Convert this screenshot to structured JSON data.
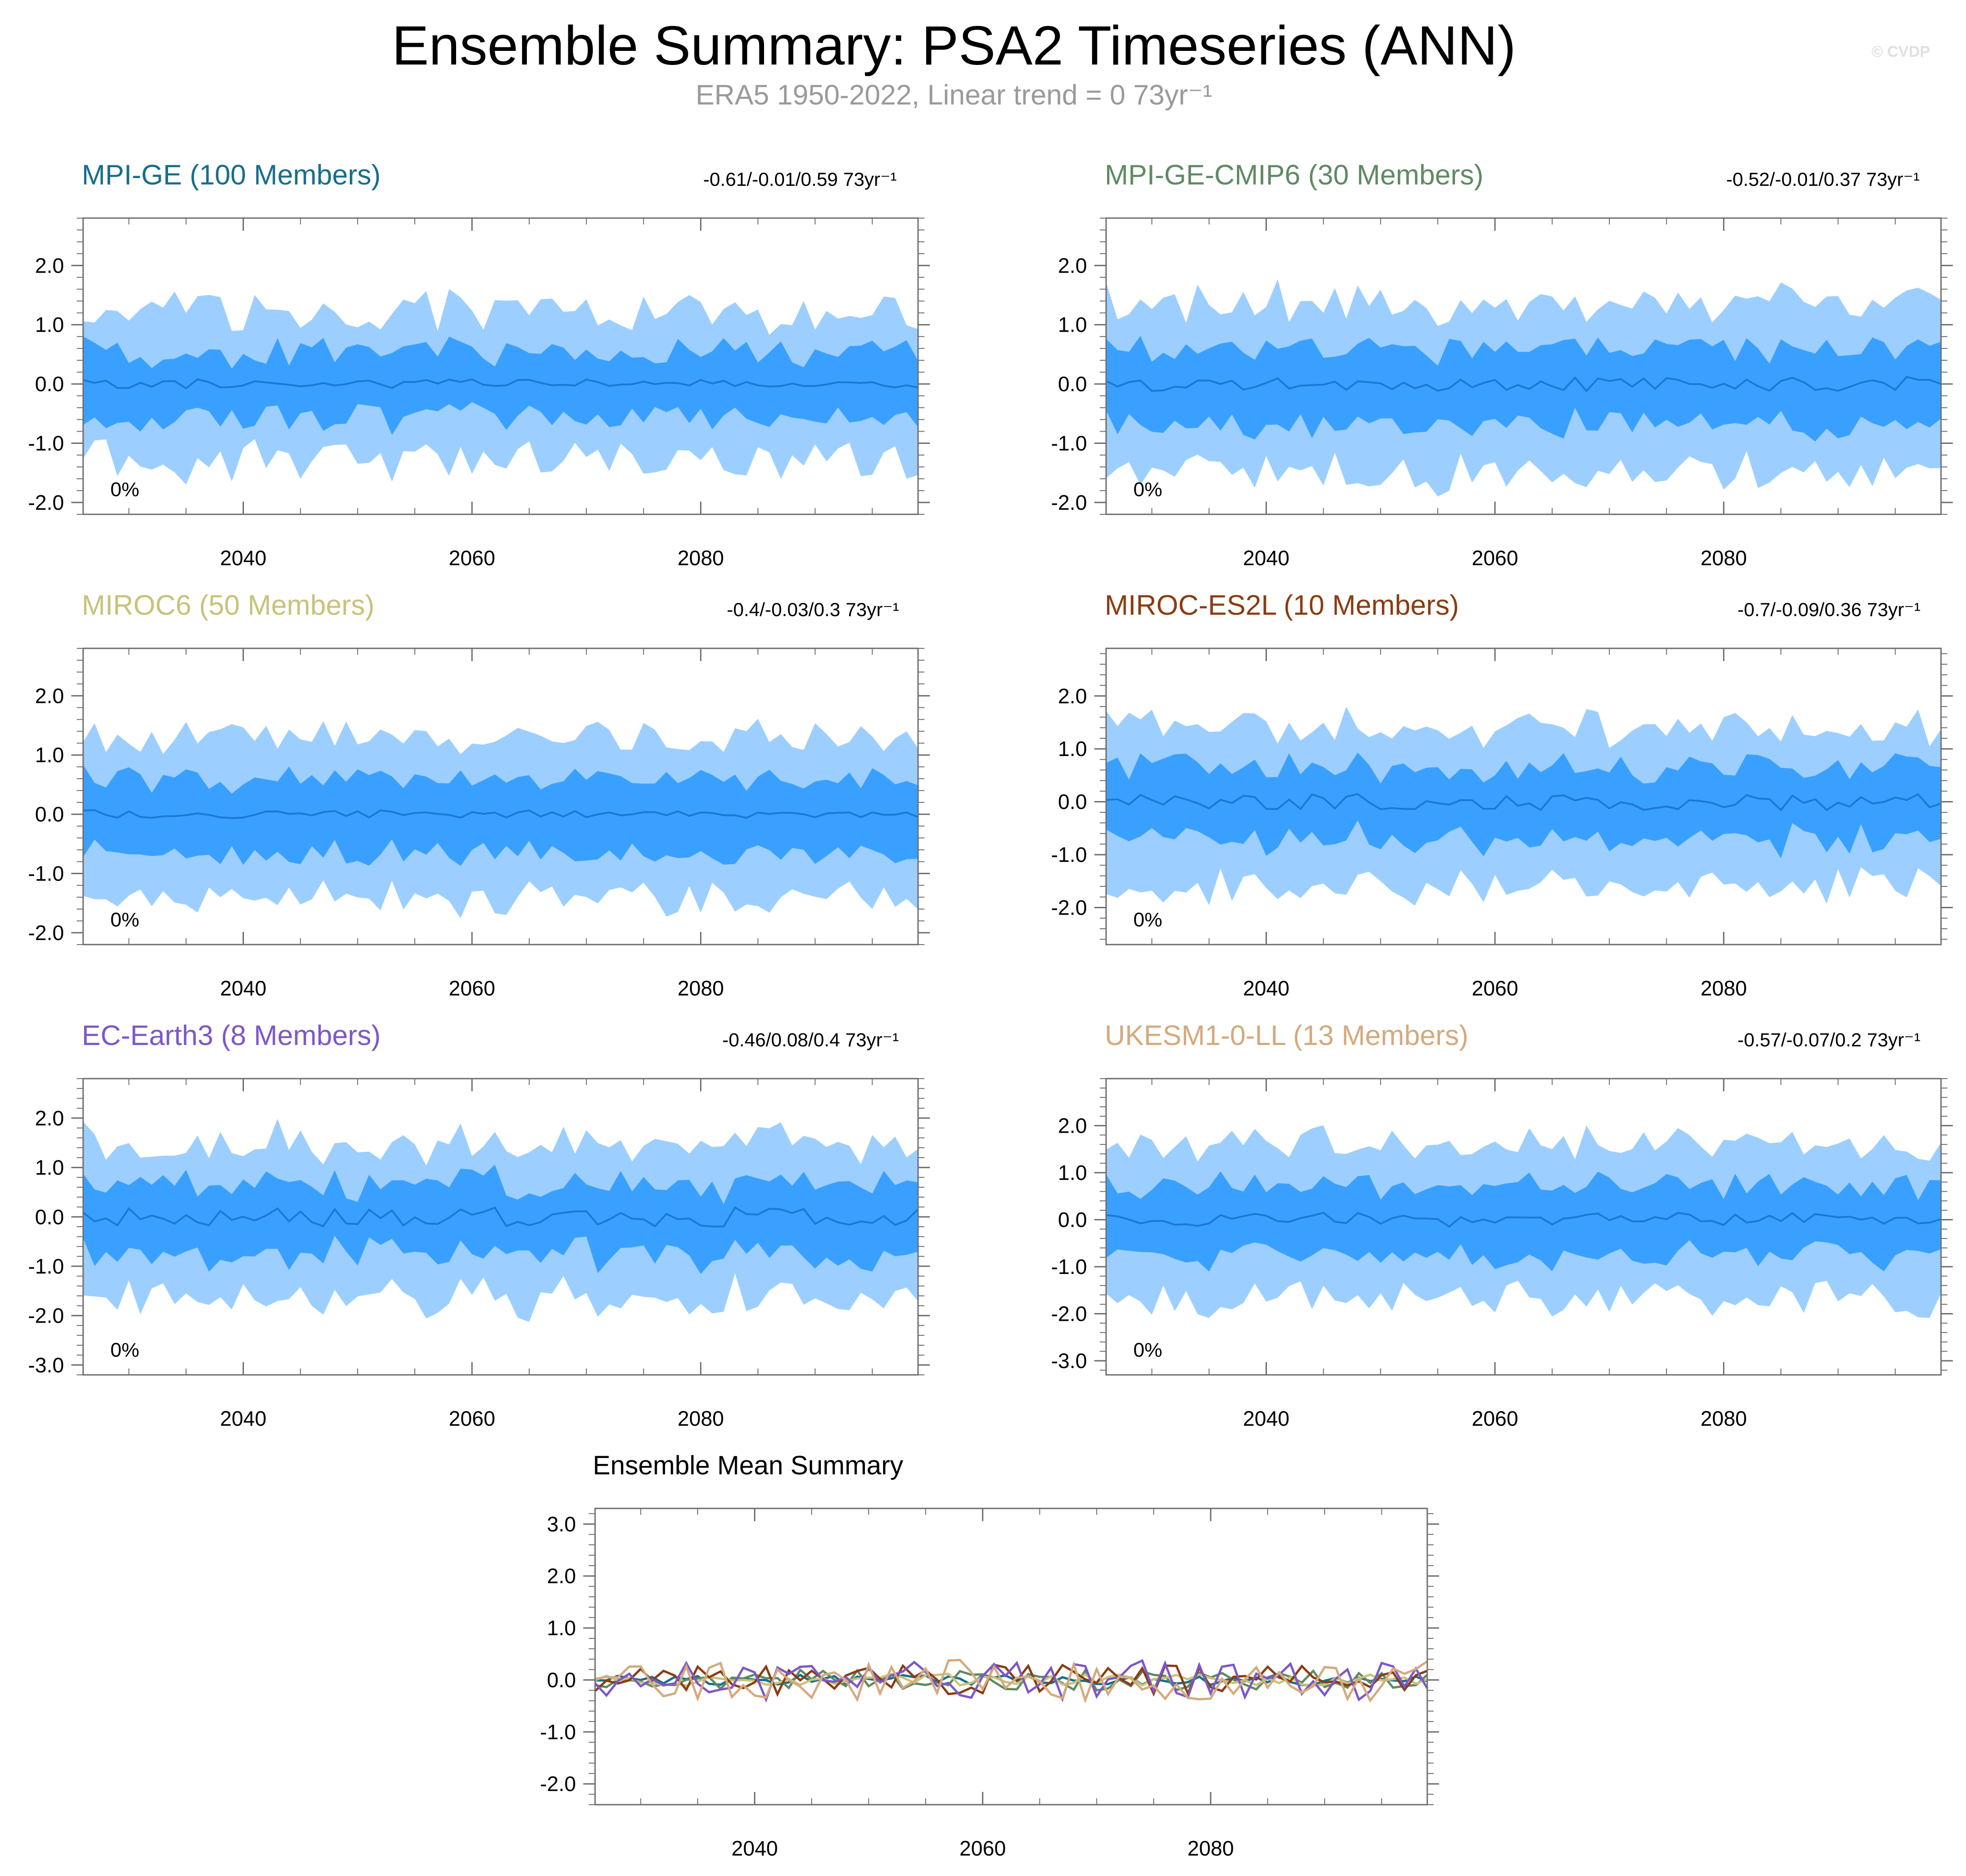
{
  "header": {
    "title": "Ensemble Summary: PSA2 Timeseries (ANN)",
    "subtitle": "ERA5 1950-2022, Linear trend = 0 73yr⁻¹",
    "copyright": "© CVDP"
  },
  "colors": {
    "outer_band": "#9ccfff",
    "inner_band": "#3aa0ff",
    "mean_line": "#1a78d6",
    "axis": "#6e6e6e"
  },
  "chart_data": [
    {
      "type": "area",
      "title": "MPI-GE (100 Members)",
      "title_color": "#176e8c",
      "stats": "-0.61/-0.01/0.59 73yr⁻¹",
      "percent_label": "0%",
      "xlim": [
        2026,
        2099
      ],
      "ylim": [
        -2.2,
        2.8
      ],
      "yticks": [
        -2.0,
        -1.0,
        0.0,
        1.0,
        2.0
      ],
      "ytick_labels": [
        "-2.0",
        "-1.0",
        "0.0",
        "1.0",
        "2.0"
      ],
      "xticks": [
        2040,
        2060,
        2080
      ],
      "xtick_labels": [
        "2040",
        "2060",
        "2080"
      ],
      "seed": 11,
      "amp": 1.0,
      "spread": 0.95,
      "jitter": 0.08
    },
    {
      "type": "area",
      "title": "MPI-GE-CMIP6 (30 Members)",
      "title_color": "#5f8a64",
      "stats": "-0.52/-0.01/0.37 73yr⁻¹",
      "percent_label": "0%",
      "xlim": [
        2026,
        2099
      ],
      "ylim": [
        -2.2,
        2.8
      ],
      "yticks": [
        -2.0,
        -1.0,
        0.0,
        1.0,
        2.0
      ],
      "ytick_labels": [
        "-2.0",
        "-1.0",
        "0.0",
        "1.0",
        "2.0"
      ],
      "xticks": [
        2040,
        2060,
        2080
      ],
      "xtick_labels": [
        "2040",
        "2060",
        "2080"
      ],
      "seed": 23,
      "amp": 1.15,
      "spread": 0.85,
      "jitter": 0.12
    },
    {
      "type": "area",
      "title": "MIROC6 (50 Members)",
      "title_color": "#c9c27a",
      "stats": "-0.4/-0.03/0.3 73yr⁻¹",
      "percent_label": "0%",
      "xlim": [
        2026,
        2099
      ],
      "ylim": [
        -2.2,
        2.8
      ],
      "yticks": [
        -2.0,
        -1.0,
        0.0,
        1.0,
        2.0
      ],
      "ytick_labels": [
        "-2.0",
        "-1.0",
        "0.0",
        "1.0",
        "2.0"
      ],
      "xticks": [
        2040,
        2060,
        2080
      ],
      "xtick_labels": [
        "2040",
        "2060",
        "2080"
      ],
      "seed": 37,
      "amp": 1.1,
      "spread": 0.8,
      "jitter": 0.07
    },
    {
      "type": "area",
      "title": "MIROC-ES2L (10 Members)",
      "title_color": "#8a3d12",
      "stats": "-0.7/-0.09/0.36 73yr⁻¹",
      "percent_label": "0%",
      "xlim": [
        2026,
        2099
      ],
      "ylim": [
        -2.7,
        2.9
      ],
      "yticks": [
        -2.0,
        -1.0,
        0.0,
        1.0,
        2.0
      ],
      "ytick_labels": [
        "-2.0",
        "-1.0",
        "0.0",
        "1.0",
        "2.0"
      ],
      "xticks": [
        2040,
        2060,
        2080
      ],
      "xtick_labels": [
        "2040",
        "2060",
        "2080"
      ],
      "seed": 53,
      "amp": 1.2,
      "spread": 0.9,
      "jitter": 0.16
    },
    {
      "type": "area",
      "title": "EC-Earth3 (8 Members)",
      "title_color": "#7d57c9",
      "stats": "-0.46/0.08/0.4 73yr⁻¹",
      "percent_label": "0%",
      "xlim": [
        2026,
        2099
      ],
      "ylim": [
        -3.2,
        2.8
      ],
      "yticks": [
        -3.0,
        -2.0,
        -1.0,
        0.0,
        1.0,
        2.0
      ],
      "ytick_labels": [
        "-3.0",
        "-2.0",
        "-1.0",
        "0.0",
        "1.0",
        "2.0"
      ],
      "xticks": [
        2040,
        2060,
        2080
      ],
      "xtick_labels": [
        "2040",
        "2060",
        "2080"
      ],
      "seed": 71,
      "amp": 1.25,
      "spread": 1.0,
      "jitter": 0.2
    },
    {
      "type": "area",
      "title": "UKESM1-0-LL (13 Members)",
      "title_color": "#d4aa7d",
      "stats": "-0.57/-0.07/0.2 73yr⁻¹",
      "percent_label": "0%",
      "xlim": [
        2026,
        2099
      ],
      "ylim": [
        -3.3,
        3.0
      ],
      "yticks": [
        -3.0,
        -2.0,
        -1.0,
        0.0,
        1.0,
        2.0
      ],
      "ytick_labels": [
        "-3.0",
        "-2.0",
        "-1.0",
        "0.0",
        "1.0",
        "2.0"
      ],
      "xticks": [
        2040,
        2060,
        2080
      ],
      "xtick_labels": [
        "2040",
        "2060",
        "2080"
      ],
      "seed": 89,
      "amp": 1.3,
      "spread": 1.0,
      "jitter": 0.15
    },
    {
      "type": "line",
      "title": "Ensemble Mean Summary",
      "title_color": "#000000",
      "xlim": [
        2026,
        2099
      ],
      "ylim": [
        -2.4,
        3.3
      ],
      "yticks": [
        -2.0,
        -1.0,
        0.0,
        1.0,
        2.0,
        3.0
      ],
      "ytick_labels": [
        "-2.0",
        "-1.0",
        "0.0",
        "1.0",
        "2.0",
        "3.0"
      ],
      "xticks": [
        2040,
        2060,
        2080
      ],
      "xtick_labels": [
        "2040",
        "2060",
        "2080"
      ],
      "series": [
        {
          "name": "MPI-GE",
          "color": "#176e8c",
          "seed": 11,
          "amp": 0.1
        },
        {
          "name": "MPI-GE-CMIP6",
          "color": "#5f8a64",
          "seed": 23,
          "amp": 0.2
        },
        {
          "name": "MIROC6",
          "color": "#c9c27a",
          "seed": 37,
          "amp": 0.12
        },
        {
          "name": "MIROC-ES2L",
          "color": "#8a3d12",
          "seed": 53,
          "amp": 0.3
        },
        {
          "name": "EC-Earth3",
          "color": "#7d57c9",
          "seed": 71,
          "amp": 0.38
        },
        {
          "name": "UKESM1-0-LL",
          "color": "#d4aa7d",
          "seed": 89,
          "amp": 0.4
        }
      ]
    }
  ]
}
